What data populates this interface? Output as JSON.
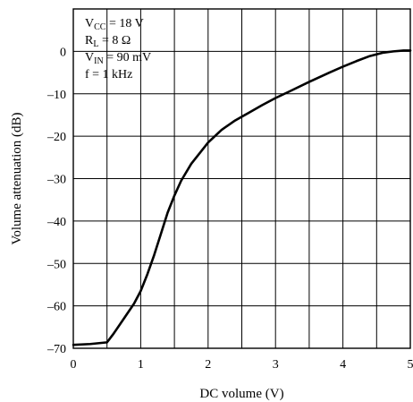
{
  "chart_data": {
    "type": "line",
    "xlabel": "DC volume  (V)",
    "ylabel": "Volume attenuation  (dB)",
    "xlim": [
      0,
      5
    ],
    "ylim": [
      -70,
      10
    ],
    "x_ticks": [
      "0",
      "1",
      "2",
      "3",
      "4",
      "5"
    ],
    "y_ticks": [
      "0",
      "-10",
      "-20",
      "-30",
      "-40",
      "-50",
      "-60",
      "-70"
    ],
    "grid": true,
    "x_grid_step": 0.5,
    "y_grid_step": 10,
    "annotation_lines": [
      {
        "main": "V",
        "sub": "CC",
        "rest": " = 18 V"
      },
      {
        "main": "R",
        "sub": "L",
        "rest": " = 8 Ω"
      },
      {
        "main": "V",
        "sub": "IN",
        "rest": " = 90 mV"
      },
      {
        "main": "f = 1 kHz",
        "sub": "",
        "rest": ""
      }
    ],
    "series": [
      {
        "x": [
          0,
          0.25,
          0.5,
          0.6,
          0.75,
          0.9,
          1.0,
          1.1,
          1.2,
          1.3,
          1.4,
          1.5,
          1.6,
          1.75,
          1.9,
          2.0,
          2.2,
          2.4,
          2.6,
          2.8,
          3.0,
          3.2,
          3.5,
          3.8,
          4.0,
          4.2,
          4.4,
          4.6,
          4.75,
          4.9,
          5.0
        ],
        "y": [
          -69.2,
          -69.0,
          -68.6,
          -66.5,
          -63.0,
          -59.5,
          -56.5,
          -52.5,
          -48.0,
          -43.0,
          -38.0,
          -34.0,
          -30.5,
          -26.5,
          -23.5,
          -21.5,
          -18.5,
          -16.3,
          -14.5,
          -12.7,
          -11.0,
          -9.5,
          -7.2,
          -5.0,
          -3.6,
          -2.3,
          -1.1,
          -0.3,
          0.0,
          0.2,
          0.2
        ]
      }
    ]
  }
}
